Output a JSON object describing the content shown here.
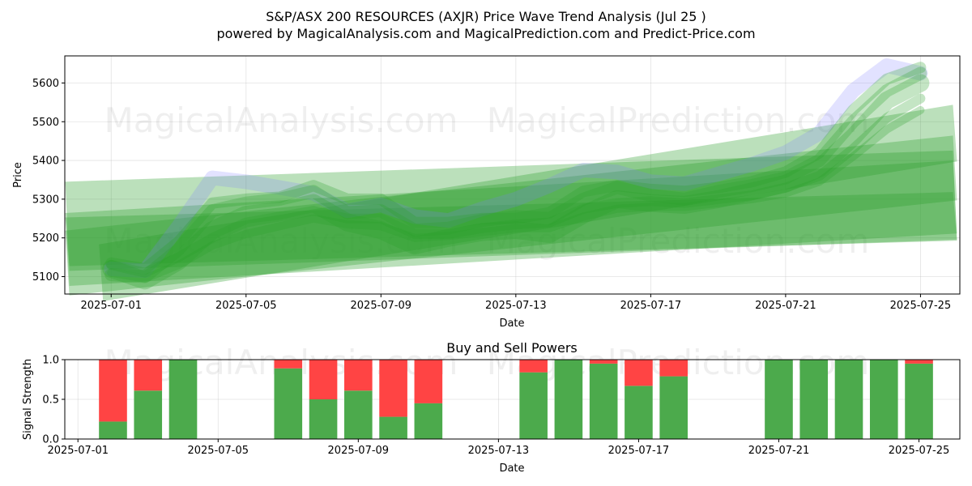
{
  "title": "S&P/ASX 200 RESOURCES (AXJR) Price Wave Trend Analysis (Jul 25 )",
  "subtitle": "powered by MagicalAnalysis.com and MagicalPrediction.com and Predict-Price.com",
  "watermarks": [
    "MagicalAnalysis.com",
    "MagicalPrediction.com"
  ],
  "colors": {
    "trend_green": "#2ca02c",
    "trend_blue": "#7b7bff",
    "buy": "#4caa4c",
    "sell": "#ff4444"
  },
  "chart_data": [
    {
      "type": "area",
      "title": "",
      "xlabel": "Date",
      "ylabel": "Price",
      "xlim": [
        "2025-06-29T15:00",
        "2025-07-26T04:00"
      ],
      "ylim": [
        5055,
        5670
      ],
      "x_ticks": [
        "2025-07-01",
        "2025-07-05",
        "2025-07-09",
        "2025-07-13",
        "2025-07-17",
        "2025-07-21",
        "2025-07-25"
      ],
      "y_ticks": [
        5100,
        5200,
        5300,
        5400,
        5500,
        5600
      ],
      "grid": true,
      "series": [
        {
          "color": "blue",
          "points": [
            [
              "2025-07-01",
              5120
            ],
            [
              "2025-07-02",
              5115
            ],
            [
              "2025-07-03",
              5230
            ],
            [
              "2025-07-04",
              5355
            ],
            [
              "2025-07-05",
              5345
            ],
            [
              "2025-07-06",
              5330
            ],
            [
              "2025-07-07",
              5315
            ],
            [
              "2025-07-08",
              5270
            ],
            [
              "2025-07-09",
              5285
            ],
            [
              "2025-07-10",
              5255
            ],
            [
              "2025-07-11",
              5245
            ],
            [
              "2025-07-12",
              5275
            ],
            [
              "2025-07-13",
              5300
            ],
            [
              "2025-07-14",
              5335
            ],
            [
              "2025-07-15",
              5375
            ],
            [
              "2025-07-16",
              5370
            ],
            [
              "2025-07-17",
              5345
            ],
            [
              "2025-07-18",
              5340
            ],
            [
              "2025-07-19",
              5365
            ],
            [
              "2025-07-20",
              5390
            ],
            [
              "2025-07-21",
              5420
            ],
            [
              "2025-07-22",
              5470
            ],
            [
              "2025-07-23",
              5580
            ],
            [
              "2025-07-24",
              5645
            ],
            [
              "2025-07-25",
              5625
            ]
          ]
        },
        {
          "color": "green",
          "points": [
            [
              "2025-07-01",
              5105
            ],
            [
              "2025-07-02",
              5100
            ],
            [
              "2025-07-03",
              5170
            ],
            [
              "2025-07-04",
              5270
            ],
            [
              "2025-07-05",
              5290
            ],
            [
              "2025-07-06",
              5300
            ],
            [
              "2025-07-07",
              5320
            ],
            [
              "2025-07-08",
              5265
            ],
            [
              "2025-07-09",
              5270
            ],
            [
              "2025-07-10",
              5220
            ],
            [
              "2025-07-11",
              5225
            ],
            [
              "2025-07-12",
              5245
            ],
            [
              "2025-07-13",
              5255
            ],
            [
              "2025-07-14",
              5250
            ],
            [
              "2025-07-15",
              5300
            ],
            [
              "2025-07-16",
              5330
            ],
            [
              "2025-07-17",
              5310
            ],
            [
              "2025-07-18",
              5300
            ],
            [
              "2025-07-19",
              5320
            ],
            [
              "2025-07-20",
              5335
            ],
            [
              "2025-07-21",
              5355
            ],
            [
              "2025-07-22",
              5400
            ],
            [
              "2025-07-23",
              5500
            ],
            [
              "2025-07-24",
              5580
            ],
            [
              "2025-07-25",
              5625
            ]
          ]
        },
        {
          "color": "green",
          "points": [
            [
              "2025-07-01",
              5120
            ],
            [
              "2025-07-02",
              5090
            ],
            [
              "2025-07-03",
              5140
            ],
            [
              "2025-07-04",
              5220
            ],
            [
              "2025-07-05",
              5260
            ],
            [
              "2025-07-06",
              5270
            ],
            [
              "2025-07-07",
              5290
            ],
            [
              "2025-07-08",
              5240
            ],
            [
              "2025-07-09",
              5220
            ],
            [
              "2025-07-10",
              5180
            ],
            [
              "2025-07-11",
              5200
            ],
            [
              "2025-07-12",
              5215
            ],
            [
              "2025-07-13",
              5220
            ],
            [
              "2025-07-14",
              5210
            ],
            [
              "2025-07-15",
              5260
            ],
            [
              "2025-07-16",
              5300
            ],
            [
              "2025-07-17",
              5290
            ],
            [
              "2025-07-18",
              5285
            ],
            [
              "2025-07-19",
              5300
            ],
            [
              "2025-07-20",
              5320
            ],
            [
              "2025-07-21",
              5340
            ],
            [
              "2025-07-22",
              5380
            ],
            [
              "2025-07-23",
              5460
            ],
            [
              "2025-07-24",
              5555
            ],
            [
              "2025-07-25",
              5600
            ]
          ]
        },
        {
          "color": "green",
          "points": [
            [
              "2025-07-01",
              5135
            ],
            [
              "2025-07-02",
              5120
            ],
            [
              "2025-07-03",
              5190
            ],
            [
              "2025-07-04",
              5290
            ],
            [
              "2025-07-05",
              5300
            ],
            [
              "2025-07-06",
              5305
            ],
            [
              "2025-07-07",
              5335
            ],
            [
              "2025-07-08",
              5300
            ],
            [
              "2025-07-09",
              5300
            ],
            [
              "2025-07-10",
              5240
            ],
            [
              "2025-07-11",
              5240
            ],
            [
              "2025-07-12",
              5250
            ],
            [
              "2025-07-13",
              5250
            ],
            [
              "2025-07-14",
              5265
            ],
            [
              "2025-07-15",
              5320
            ],
            [
              "2025-07-16",
              5335
            ],
            [
              "2025-07-17",
              5325
            ],
            [
              "2025-07-18",
              5320
            ],
            [
              "2025-07-19",
              5330
            ],
            [
              "2025-07-20",
              5345
            ],
            [
              "2025-07-21",
              5370
            ],
            [
              "2025-07-22",
              5420
            ],
            [
              "2025-07-23",
              5530
            ],
            [
              "2025-07-24",
              5610
            ],
            [
              "2025-07-25",
              5640
            ]
          ]
        },
        {
          "color": "green",
          "points": [
            [
              "2025-07-01",
              5130
            ],
            [
              "2025-07-02",
              5110
            ],
            [
              "2025-07-03",
              5150
            ],
            [
              "2025-07-04",
              5200
            ],
            [
              "2025-07-05",
              5240
            ],
            [
              "2025-07-06",
              5255
            ],
            [
              "2025-07-07",
              5270
            ],
            [
              "2025-07-08",
              5250
            ],
            [
              "2025-07-09",
              5250
            ],
            [
              "2025-07-10",
              5210
            ],
            [
              "2025-07-11",
              5210
            ],
            [
              "2025-07-12",
              5225
            ],
            [
              "2025-07-13",
              5235
            ],
            [
              "2025-07-14",
              5240
            ],
            [
              "2025-07-15",
              5275
            ],
            [
              "2025-07-16",
              5290
            ],
            [
              "2025-07-17",
              5295
            ],
            [
              "2025-07-18",
              5290
            ],
            [
              "2025-07-19",
              5300
            ],
            [
              "2025-07-20",
              5310
            ],
            [
              "2025-07-21",
              5330
            ],
            [
              "2025-07-22",
              5360
            ],
            [
              "2025-07-23",
              5430
            ],
            [
              "2025-07-24",
              5510
            ],
            [
              "2025-07-25",
              5560
            ]
          ]
        },
        {
          "color": "green",
          "points": [
            [
              "2025-07-01",
              5110
            ],
            [
              "2025-07-02",
              5095
            ],
            [
              "2025-07-03",
              5130
            ],
            [
              "2025-07-04",
              5180
            ],
            [
              "2025-07-05",
              5210
            ],
            [
              "2025-07-06",
              5230
            ],
            [
              "2025-07-07",
              5250
            ],
            [
              "2025-07-08",
              5235
            ],
            [
              "2025-07-09",
              5230
            ],
            [
              "2025-07-10",
              5200
            ],
            [
              "2025-07-11",
              5205
            ],
            [
              "2025-07-12",
              5215
            ],
            [
              "2025-07-13",
              5225
            ],
            [
              "2025-07-14",
              5225
            ],
            [
              "2025-07-15",
              5255
            ],
            [
              "2025-07-16",
              5275
            ],
            [
              "2025-07-17",
              5280
            ],
            [
              "2025-07-18",
              5280
            ],
            [
              "2025-07-19",
              5290
            ],
            [
              "2025-07-20",
              5300
            ],
            [
              "2025-07-21",
              5315
            ],
            [
              "2025-07-22",
              5345
            ],
            [
              "2025-07-23",
              5410
            ],
            [
              "2025-07-24",
              5480
            ],
            [
              "2025-07-25",
              5530
            ]
          ]
        }
      ],
      "trend_bands": [
        {
          "start": [
            "2025-06-30",
            5230
          ],
          "end": [
            "2025-07-25",
            5300
          ]
        },
        {
          "start": [
            "2025-06-30",
            5170
          ],
          "end": [
            "2025-07-25",
            5295
          ]
        },
        {
          "start": [
            "2025-06-30",
            5135
          ],
          "end": [
            "2025-07-25",
            5370
          ]
        },
        {
          "start": [
            "2025-06-30",
            5190
          ],
          "end": [
            "2025-07-25",
            5245
          ]
        },
        {
          "start": [
            "2025-07-01",
            5110
          ],
          "end": [
            "2025-07-25",
            5460
          ]
        }
      ]
    },
    {
      "type": "bar",
      "title": "Buy and Sell Powers",
      "xlabel": "Date",
      "ylabel": "Signal Strength",
      "xlim": [
        "2025-06-30T15:00",
        "2025-07-26T04:00"
      ],
      "ylim": [
        0,
        1
      ],
      "x_ticks": [
        "2025-07-01",
        "2025-07-05",
        "2025-07-09",
        "2025-07-13",
        "2025-07-17",
        "2025-07-21",
        "2025-07-25"
      ],
      "y_ticks": [
        0.0,
        0.5,
        1.0
      ],
      "y_tick_labels": [
        "0.0",
        "0.5",
        "1.0"
      ],
      "grid": true,
      "categories": [
        "2025-07-02",
        "2025-07-03",
        "2025-07-04",
        "2025-07-07",
        "2025-07-08",
        "2025-07-09",
        "2025-07-10",
        "2025-07-11",
        "2025-07-14",
        "2025-07-15",
        "2025-07-16",
        "2025-07-17",
        "2025-07-18",
        "2025-07-21",
        "2025-07-22",
        "2025-07-23",
        "2025-07-24",
        "2025-07-25"
      ],
      "series": [
        {
          "name": "Buy",
          "color": "#4caa4c",
          "values": [
            0.22,
            0.61,
            1.0,
            0.89,
            0.5,
            0.61,
            0.28,
            0.45,
            0.84,
            1.0,
            0.95,
            0.67,
            0.79,
            1.0,
            1.0,
            1.0,
            1.0,
            0.95
          ]
        },
        {
          "name": "Sell",
          "color": "#ff4444",
          "values": [
            0.78,
            0.39,
            0.0,
            0.11,
            0.5,
            0.39,
            0.72,
            0.55,
            0.16,
            0.0,
            0.05,
            0.33,
            0.21,
            0.0,
            0.0,
            0.0,
            0.0,
            0.05
          ]
        }
      ]
    }
  ]
}
